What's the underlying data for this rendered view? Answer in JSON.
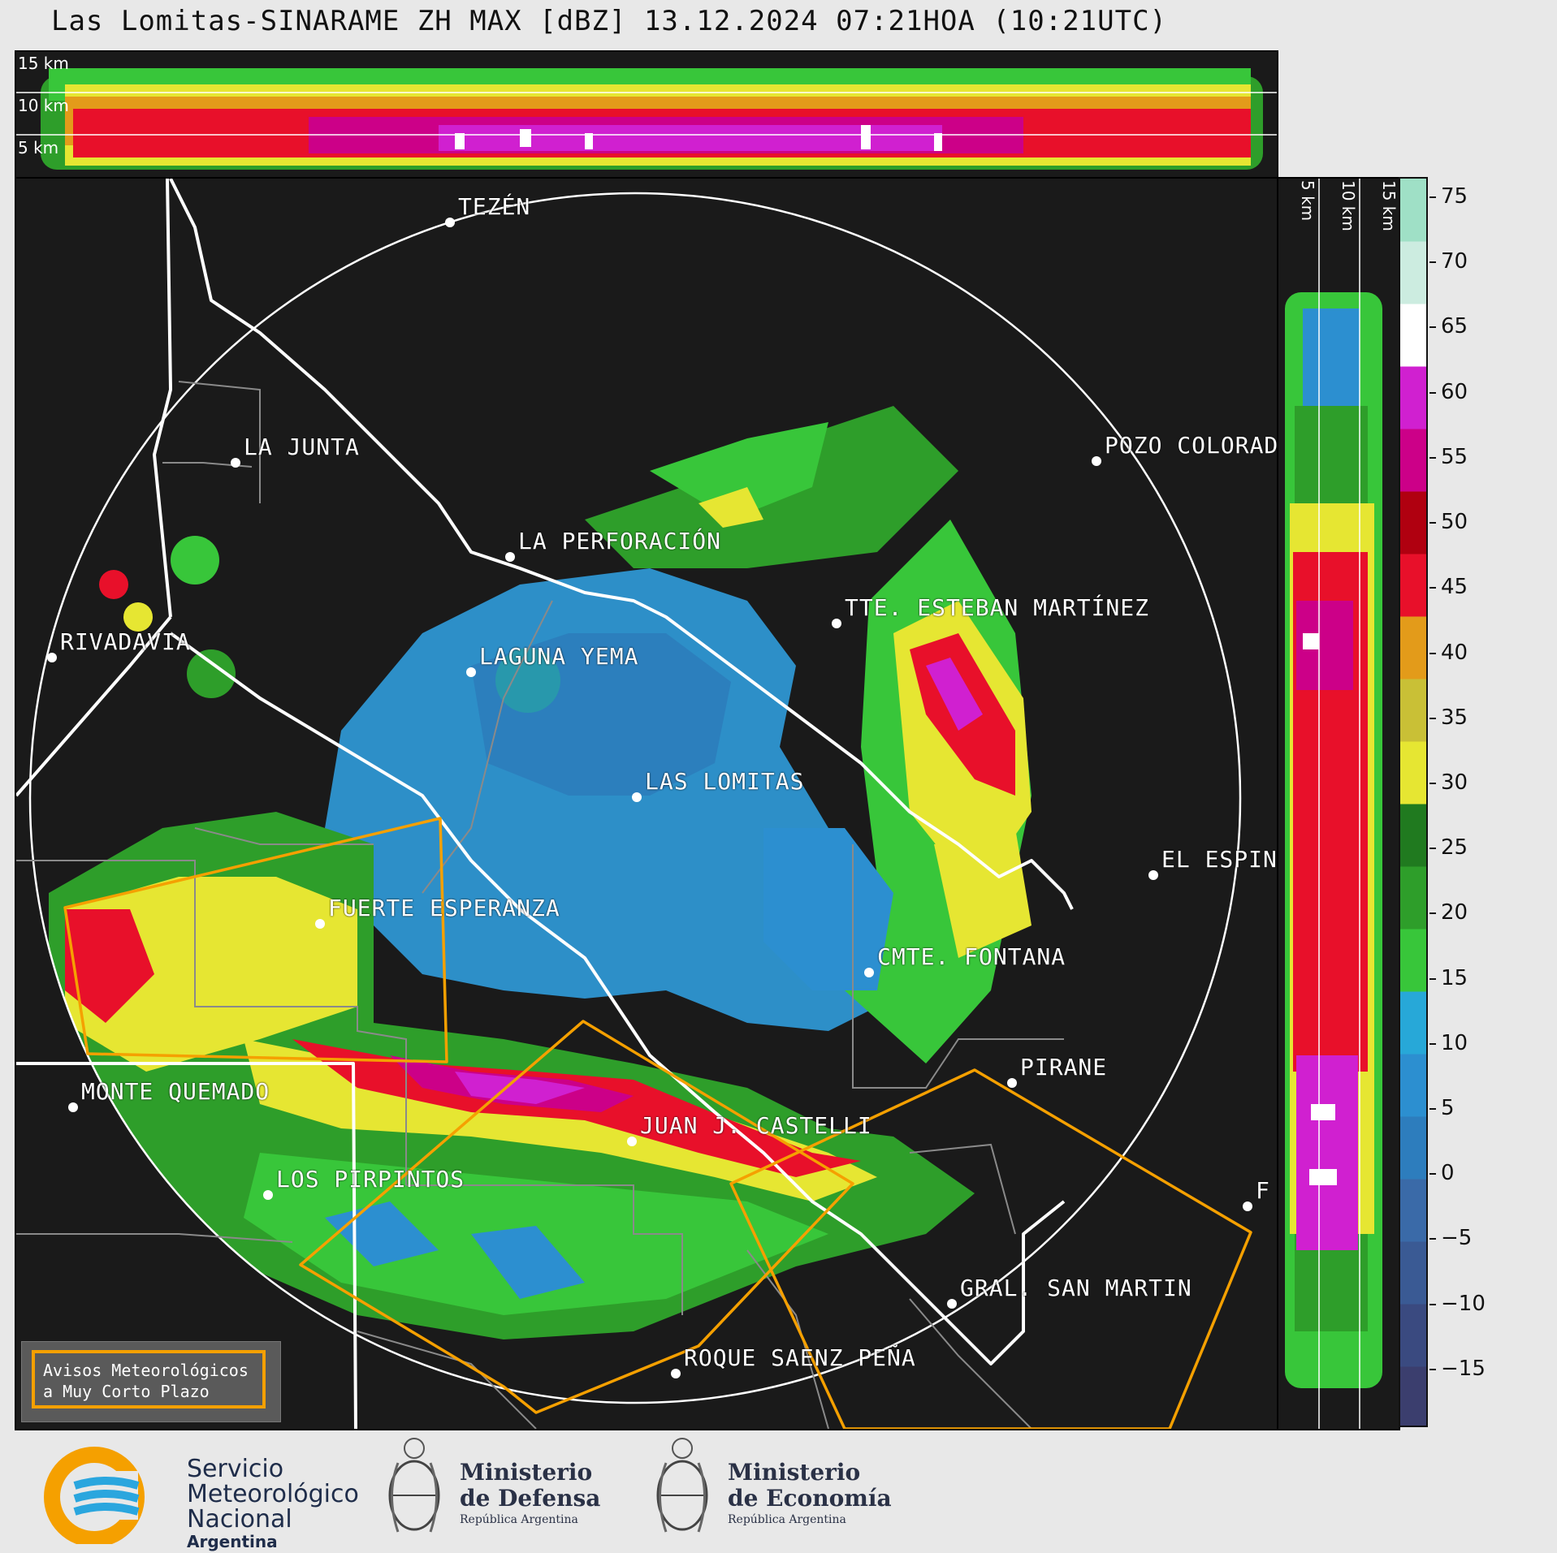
{
  "header": {
    "title": "Las Lomitas-SINARAME ZH MAX [dBZ] 13.12.2024 07:21HOA (10:21UTC)"
  },
  "altitude_labels": {
    "top": [
      "15 km",
      "10 km",
      "5 km"
    ],
    "side": [
      "5 km",
      "10 km",
      "15 km"
    ]
  },
  "colorbar": {
    "unit": "dBZ",
    "tick_labels": [
      "75",
      "70",
      "65",
      "60",
      "55",
      "50",
      "45",
      "40",
      "35",
      "30",
      "25",
      "20",
      "15",
      "10",
      "5",
      "0",
      "−5",
      "−10",
      "−15"
    ],
    "range": [
      -19.5,
      76.5
    ],
    "colors": [
      "#3b3e6e",
      "#3a4a80",
      "#3a5a94",
      "#3a6aa8",
      "#2d7dbd",
      "#2c8fd0",
      "#27a8d8",
      "#38c63a",
      "#2e9e2a",
      "#207a1f",
      "#e6e632",
      "#c9c036",
      "#e39b1a",
      "#e8102a",
      "#b00010",
      "#cc0088",
      "#d020d0",
      "#ffffff",
      "#ccece0",
      "#9fe0c6"
    ]
  },
  "cities": [
    {
      "name": "TEZÉN"
    },
    {
      "name": "LA JUNTA"
    },
    {
      "name": "POZO COLORAD"
    },
    {
      "name": "LA PERFORACIÓN"
    },
    {
      "name": "TTE. ESTEBAN MARTÍNEZ"
    },
    {
      "name": "RIVADAVIA"
    },
    {
      "name": "LAGUNA YEMA"
    },
    {
      "name": "LAS LOMITAS"
    },
    {
      "name": "EL ESPIN"
    },
    {
      "name": "FUERTE ESPERANZA"
    },
    {
      "name": "CMTE. FONTANA"
    },
    {
      "name": "PIRANE"
    },
    {
      "name": "MONTE QUEMADO"
    },
    {
      "name": "JUAN J. CASTELLI"
    },
    {
      "name": "LOS PIRPINTOS"
    },
    {
      "name": "GRAL. SAN MARTIN"
    },
    {
      "name": "ROQUE SAENZ PEÑA"
    },
    {
      "name": "F"
    }
  ],
  "legend": {
    "line1": "Avisos Meteorológicos",
    "line2": "a Muy Corto Plazo",
    "color": "#f5a000"
  },
  "logos": {
    "smn": {
      "line1": "Servicio",
      "line2": "Meteorológico",
      "line3": "Nacional",
      "line4": "Argentina"
    },
    "defensa": {
      "line1": "Ministerio",
      "line2": "de Defensa",
      "line3": "República Argentina"
    },
    "economia": {
      "line1": "Ministerio",
      "line2": "de Economía",
      "line3": "República Argentina"
    }
  }
}
